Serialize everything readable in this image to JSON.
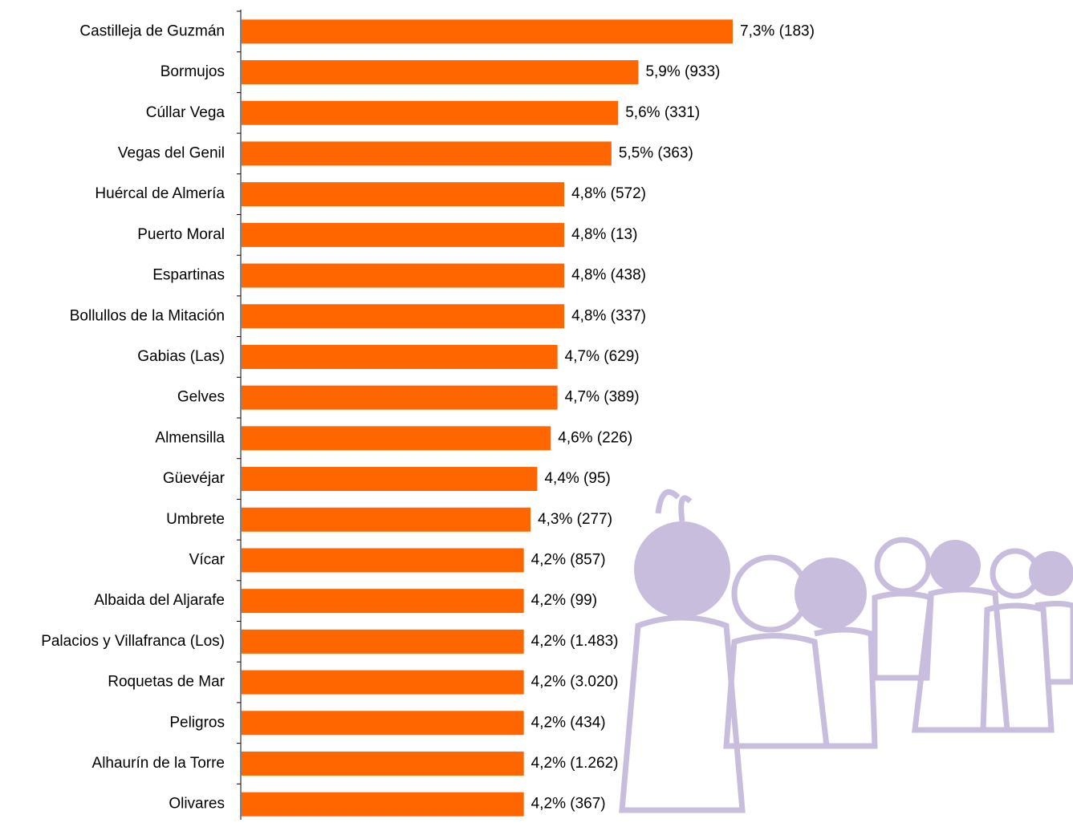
{
  "chart_data": {
    "type": "bar",
    "orientation": "horizontal",
    "color": "#ff6600",
    "categories": [
      "Castilleja de Guzmán",
      "Bormujos",
      "Cúllar Vega",
      "Vegas del Genil",
      "Huércal de Almería",
      "Puerto Moral",
      "Espartinas",
      "Bollullos de la Mitación",
      "Gabias (Las)",
      "Gelves",
      "Almensilla",
      "Güevéjar",
      "Umbrete",
      "Vícar",
      "Albaida del Aljarafe",
      "Palacios y Villafranca (Los)",
      "Roquetas de Mar",
      "Peligros",
      "Alhaurín de la Torre",
      "Olivares"
    ],
    "values": [
      7.3,
      5.9,
      5.6,
      5.5,
      4.8,
      4.8,
      4.8,
      4.8,
      4.7,
      4.7,
      4.6,
      4.4,
      4.3,
      4.2,
      4.2,
      4.2,
      4.2,
      4.2,
      4.2,
      4.2
    ],
    "value_labels": [
      "7,3% (183)",
      "5,9% (933)",
      "5,6% (331)",
      "5,5% (363)",
      "4,8% (572)",
      "4,8% (13)",
      "4,8% (438)",
      "4,8% (337)",
      "4,7% (629)",
      "4,7% (389)",
      "4,6% (226)",
      "4,4% (95)",
      "4,3% (277)",
      "4,2% (857)",
      "4,2% (99)",
      "4,2% (1.483)",
      "4,2% (3.020)",
      "4,2% (434)",
      "4,2% (1.262)",
      "4,2% (367)"
    ]
  }
}
